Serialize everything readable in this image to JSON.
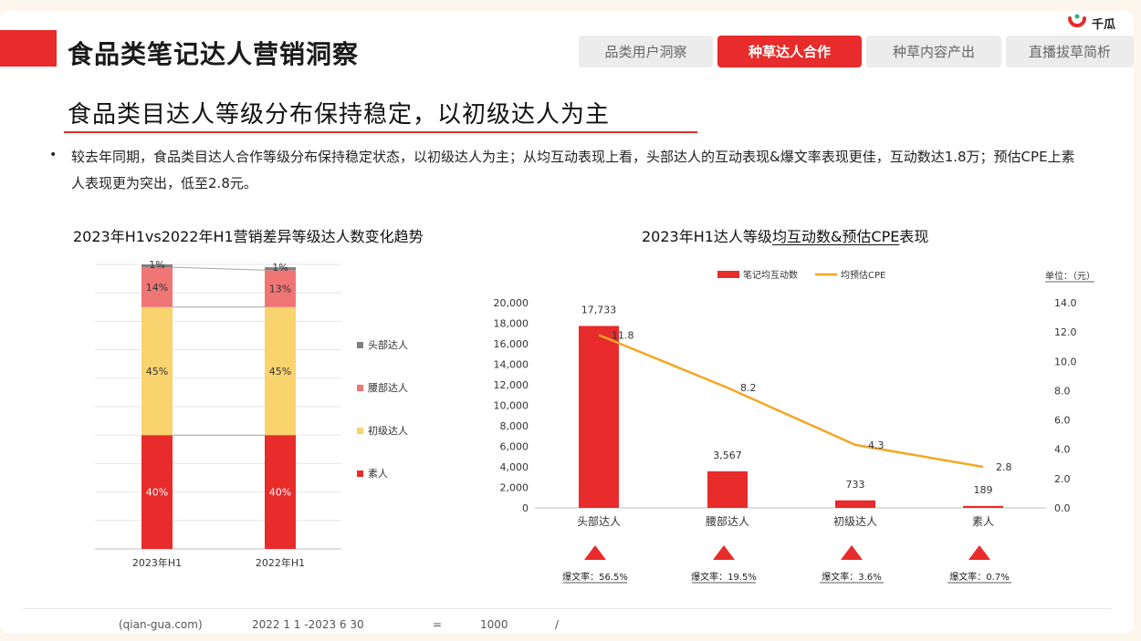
{
  "logo": {
    "text": "千瓜"
  },
  "page_title": "食品类笔记达人营销洞察",
  "tabs": [
    {
      "label": "品类用户洞察",
      "active": false
    },
    {
      "label": "种草达人合作",
      "active": true
    },
    {
      "label": "种草内容产出",
      "active": false
    },
    {
      "label": "直播拔草简析",
      "active": false
    }
  ],
  "headline": "食品类目达人等级分布保持稳定，以初级达人为主",
  "summary": "较去年同期，食品类目达人合作等级分布保持稳定状态，以初级达人为主；从均互动表现上看，头部达人的互动表现&爆文率表现更佳，互动数达1.8万；预估CPE上素人表现更为突出，低至2.8元。",
  "colors": {
    "accent": "#e82b2b",
    "orange": "#f5a623",
    "pink": "#f07575",
    "yellow": "#f9d36d",
    "gray": "#7f7f7f"
  },
  "chart1_title": "2023年H1vs2022年H1营销差异等级达人数变化趋势",
  "chart2_title_prefix": "2023年H1达人等级",
  "chart2_title_underlined": "均互动数&预估CPE",
  "chart2_title_suffix": "表现",
  "footer": {
    "source": "(qian-gua.com)",
    "period": "2022   1   1   -2023   6   30",
    "eq": "=",
    "count": "1000",
    "slash": "/"
  },
  "chart_data": [
    {
      "type": "bar",
      "stacked": true,
      "percent": true,
      "categories": [
        "2023年H1",
        "2022年H1"
      ],
      "series": [
        {
          "name": "素人",
          "values": [
            40,
            40
          ],
          "labels": [
            "40%",
            "40%"
          ],
          "color": "#e82b2b"
        },
        {
          "name": "初级达人",
          "values": [
            45,
            45
          ],
          "labels": [
            "45%",
            "45%"
          ],
          "color": "#f9d36d"
        },
        {
          "name": "腰部达人",
          "values": [
            14,
            13
          ],
          "labels": [
            "14%",
            "13%"
          ],
          "color": "#f07575"
        },
        {
          "name": "头部达人",
          "values": [
            1,
            1
          ],
          "labels": [
            "1%",
            "1%"
          ],
          "color": "#7f7f7f"
        }
      ],
      "legend_order": [
        "头部达人",
        "腰部达人",
        "初级达人",
        "素人"
      ],
      "legend_position": "right",
      "grid": true
    },
    {
      "type": "bar",
      "combo": "bar+line",
      "categories": [
        "头部达人",
        "腰部达人",
        "初级达人",
        "素人"
      ],
      "series": [
        {
          "name": "笔记均互动数",
          "type": "bar",
          "axis": "left",
          "values": [
            17733,
            3567,
            733,
            189
          ],
          "labels": [
            "17,733",
            "3,567",
            "733",
            "189"
          ],
          "color": "#e82b2b"
        },
        {
          "name": "均预估CPE",
          "type": "line",
          "axis": "right",
          "values": [
            11.8,
            8.2,
            4.3,
            2.8
          ],
          "labels": [
            "11.8",
            "8.2",
            "4.3",
            "2.8"
          ],
          "color": "#f5a623"
        }
      ],
      "ylim": [
        0,
        20000
      ],
      "yticks": [
        "0",
        "2,000",
        "4,000",
        "6,000",
        "8,000",
        "10,000",
        "12,000",
        "14,000",
        "16,000",
        "18,000",
        "20,000"
      ],
      "y2lim": [
        0,
        14
      ],
      "y2ticks": [
        "0.0",
        "2.0",
        "4.0",
        "6.0",
        "8.0",
        "10.0",
        "12.0",
        "14.0"
      ],
      "unit_label": "单位：（元）",
      "legend_position": "top",
      "viral_rates": [
        "爆文率：56.5%",
        "爆文率：19.5%",
        "爆文率：3.6%",
        "爆文率：0.7%"
      ]
    }
  ]
}
